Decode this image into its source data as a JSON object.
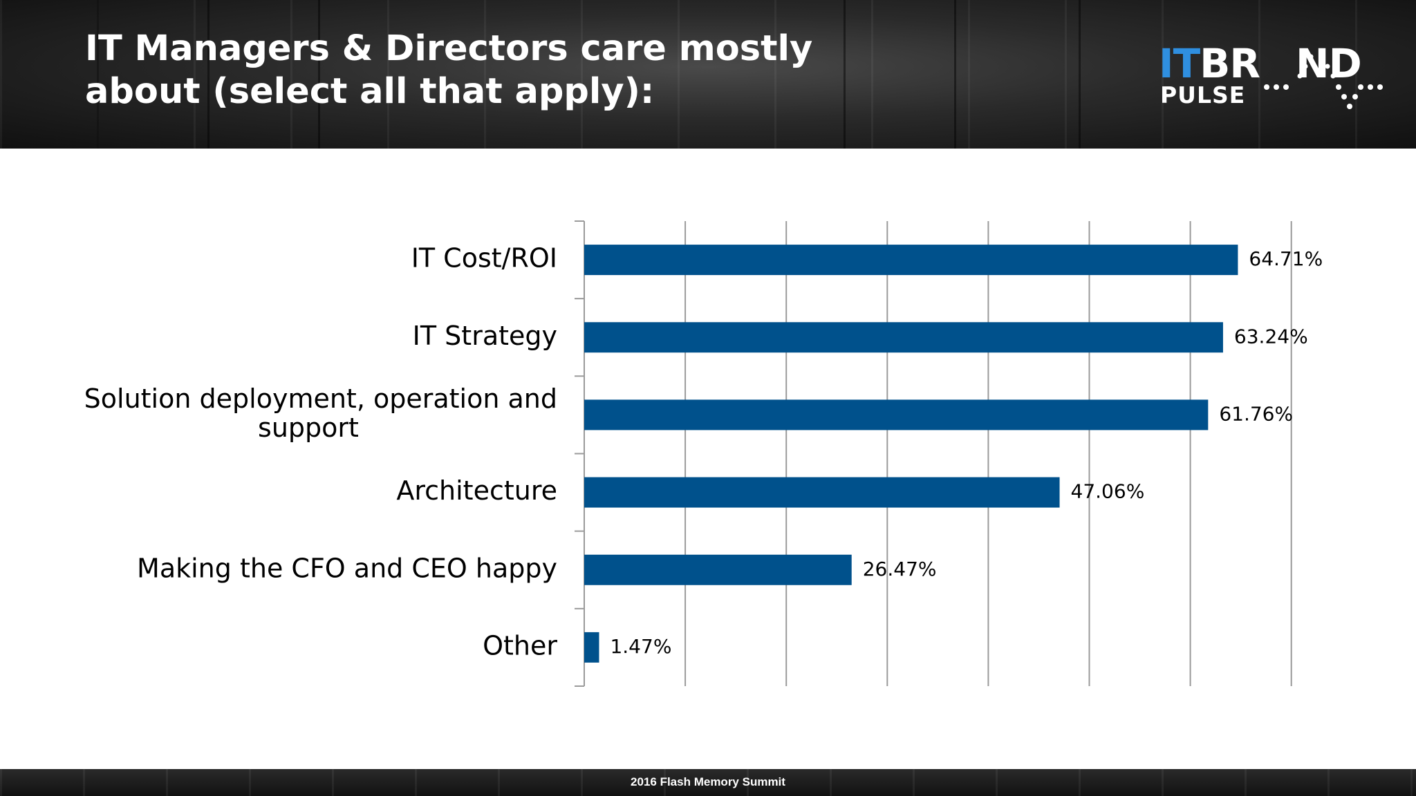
{
  "header": {
    "title_line1": "IT Managers & Directors care mostly",
    "title_line2": "about (select all that apply):"
  },
  "logo": {
    "part1": "IT",
    "part2": "BR",
    "part3": "ND",
    "part4": "PULSE"
  },
  "colors": {
    "bar": "#00518c",
    "grid": "#9a9a9a",
    "label_text": "#000000",
    "header_bg": "#2b2b2b"
  },
  "chart_data": {
    "type": "bar",
    "orientation": "horizontal",
    "categories": [
      [
        "IT Cost/ROI"
      ],
      [
        "IT Strategy"
      ],
      [
        "Solution deployment, operation and",
        "support"
      ],
      [
        "Architecture"
      ],
      [
        "Making the CFO and CEO happy"
      ],
      [
        "Other"
      ]
    ],
    "values": [
      64.71,
      63.24,
      61.76,
      47.06,
      26.47,
      1.47
    ],
    "data_labels": [
      "64.71%",
      "63.24%",
      "61.76%",
      "47.06%",
      "26.47%",
      "1.47%"
    ],
    "xlim": [
      0,
      70
    ],
    "x_gridline_interval": 10,
    "grid": true,
    "legend": "none"
  },
  "footer": {
    "text": "2016 Flash Memory Summit"
  }
}
